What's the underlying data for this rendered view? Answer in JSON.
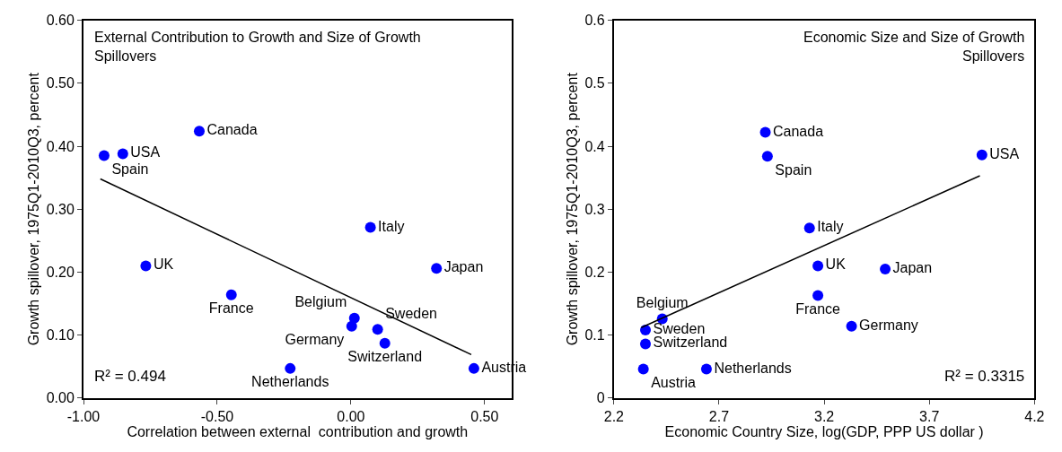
{
  "chart_data": [
    {
      "type": "scatter",
      "title": "External Contribution to Growth and Size of Growth Spillovers",
      "xlabel": "Correlation between external  contribution and growth",
      "ylabel": "Growth spillover, 1975Q1-2010Q3, percent",
      "xlim": [
        -1.0,
        0.6
      ],
      "ylim": [
        0,
        0.6
      ],
      "xticks": [
        {
          "value": -1,
          "label": "-1.00"
        },
        {
          "value": -0.5,
          "label": "-0.50"
        },
        {
          "value": 0,
          "label": "0.00"
        },
        {
          "value": 0.5,
          "label": "0.50"
        }
      ],
      "yticks": [
        {
          "value": 0,
          "label": "0.00"
        },
        {
          "value": 0.1,
          "label": "0.10"
        },
        {
          "value": 0.2,
          "label": "0.20"
        },
        {
          "value": 0.3,
          "label": "0.30"
        },
        {
          "value": 0.4,
          "label": "0.40"
        },
        {
          "value": 0.5,
          "label": "0.50"
        },
        {
          "value": 0.6,
          "label": "0.60"
        }
      ],
      "annotations": [
        "R² = 0.494"
      ],
      "series": [
        {
          "marker": "circle",
          "color": "#0000ff",
          "x": [
            -0.853,
            -0.923,
            -0.567,
            -0.767,
            -0.447,
            0.073,
            0.32,
            0.013,
            0.003,
            0.1,
            0.127,
            -0.227,
            0.46
          ],
          "values": [
            0.388,
            0.385,
            0.424,
            0.21,
            0.164,
            0.271,
            0.206,
            0.127,
            0.114,
            0.109,
            0.087,
            0.047,
            0.047
          ],
          "value_labels": [
            "USA",
            "Spain",
            "Canada",
            "UK",
            "France",
            "Italy",
            "Japan",
            "Belgium",
            "Germany",
            "Sweden",
            "Switzerland",
            "Netherlands",
            "Austria"
          ]
        },
        {
          "type": "line",
          "color": "#000000",
          "x": [
            -0.937,
            0.45
          ],
          "values": [
            0.348,
            0.069
          ]
        }
      ]
    },
    {
      "type": "scatter",
      "title": "Economic Size and Size of Growth Spillovers",
      "xlabel": "Economic Country Size, log(GDP, PPP US dollar )",
      "ylabel": "Growth spillover, 1975Q1-2010Q3, percent",
      "xlim": [
        2.2,
        4.2
      ],
      "ylim": [
        0,
        0.6
      ],
      "xticks": [
        2.2,
        2.7,
        3.2,
        3.7,
        4.2
      ],
      "yticks": [
        0,
        0.1,
        0.2,
        0.3,
        0.4,
        0.5,
        0.6
      ],
      "annotations": [
        "R² = 0.3315"
      ],
      "series": [
        {
          "marker": "circle",
          "color": "#0000ff",
          "x": [
            3.95,
            2.93,
            2.92,
            3.17,
            3.17,
            3.13,
            3.49,
            2.43,
            3.33,
            2.35,
            2.35,
            2.64,
            2.34
          ],
          "values": [
            0.386,
            0.384,
            0.422,
            0.21,
            0.163,
            0.27,
            0.205,
            0.126,
            0.114,
            0.108,
            0.086,
            0.046,
            0.046
          ],
          "value_labels": [
            "USA",
            "Spain",
            "Canada",
            "UK",
            "France",
            "Italy",
            "Japan",
            "Belgium",
            "Germany",
            "Sweden",
            "Switzerland",
            "Netherlands",
            "Austria"
          ]
        },
        {
          "type": "line",
          "color": "#000000",
          "x": [
            2.33,
            3.94
          ],
          "values": [
            0.112,
            0.353
          ]
        }
      ]
    }
  ]
}
